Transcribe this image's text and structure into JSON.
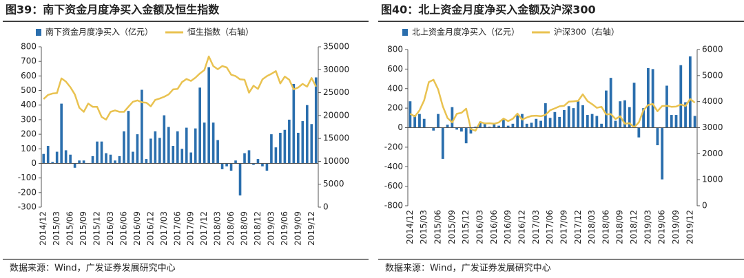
{
  "chart_data": [
    {
      "type": "bar",
      "title": "图39：南下资金月度净买入金额及恒生指数",
      "source": "数据来源：Wind，广发证券发展研究中心",
      "categories": [
        "2014/12",
        null,
        null,
        "2015/03",
        null,
        null,
        "2015/06",
        null,
        null,
        "2015/09",
        null,
        null,
        "2015/12",
        null,
        null,
        "2016/03",
        null,
        null,
        "2016/06",
        null,
        null,
        "2016/09",
        null,
        null,
        "2016/12",
        null,
        null,
        "2017/03",
        null,
        null,
        "2017/06",
        null,
        null,
        "2017/09",
        null,
        null,
        "2017/12",
        null,
        null,
        "2018/03",
        null,
        null,
        "2018/06",
        null,
        null,
        "2018/09",
        null,
        null,
        "2018/12",
        null,
        null,
        "2019/03",
        null,
        null,
        "2019/06",
        null,
        null,
        "2019/09",
        null,
        null,
        "2019/12",
        null
      ],
      "series": [
        {
          "name": "南下资金月度净买入（亿元）",
          "type": "bar",
          "color": "#2a6ead",
          "values": [
            65,
            120,
            10,
            80,
            410,
            90,
            60,
            -30,
            20,
            20,
            0,
            50,
            150,
            150,
            70,
            60,
            20,
            50,
            220,
            360,
            80,
            200,
            505,
            30,
            170,
            220,
            175,
            330,
            250,
            120,
            220,
            100,
            245,
            75,
            240,
            520,
            280,
            660,
            280,
            160,
            -40,
            -20,
            -50,
            20,
            -220,
            70,
            90,
            -10,
            30,
            -20,
            -50,
            200,
            110,
            210,
            230,
            300,
            545,
            210,
            290,
            400,
            270,
            590
          ]
        },
        {
          "name": "恒生指数（右轴）",
          "type": "line",
          "axis": "y2",
          "color": "#e9c250",
          "values": [
            23600,
            24500,
            24800,
            24900,
            28100,
            27400,
            26200,
            24600,
            21700,
            20800,
            22600,
            21900,
            21900,
            19700,
            19100,
            20800,
            21100,
            20800,
            20800,
            21900,
            23000,
            23300,
            22900,
            22800,
            22000,
            23400,
            23700,
            24100,
            24600,
            25700,
            25800,
            27300,
            27970,
            27550,
            28250,
            29180,
            29920,
            32900,
            30800,
            30100,
            30800,
            30500,
            28900,
            28600,
            27900,
            27800,
            24980,
            26500,
            25800,
            27900,
            28600,
            29100,
            29700,
            27000,
            28500,
            27800,
            25700,
            26100,
            26900,
            26300,
            28200,
            26300
          ]
        }
      ],
      "ylim": [
        -300,
        800
      ],
      "yticks": [
        -300,
        -200,
        -100,
        0,
        100,
        200,
        300,
        400,
        500,
        600,
        700,
        800
      ],
      "y2lim": [
        0,
        35000
      ],
      "y2ticks": [
        0,
        5000,
        10000,
        15000,
        20000,
        25000,
        30000,
        35000
      ]
    },
    {
      "type": "bar",
      "title": "图40：北上资金月度净买入金额及沪深300",
      "source": "数据来源：Wind，广发证券发展研究中心",
      "categories": [
        "2014/12",
        null,
        null,
        "2015/03",
        null,
        null,
        "2015/06",
        null,
        null,
        "2015/09",
        null,
        null,
        "2015/12",
        null,
        null,
        "2016/03",
        null,
        null,
        "2016/06",
        null,
        null,
        "2016/09",
        null,
        null,
        "2016/12",
        null,
        null,
        "2017/03",
        null,
        null,
        "2017/06",
        null,
        null,
        "2017/09",
        null,
        null,
        "2017/12",
        null,
        null,
        "2018/03",
        null,
        null,
        "2018/06",
        null,
        null,
        "2018/09",
        null,
        null,
        "2018/12",
        null,
        null,
        "2019/03",
        null,
        null,
        "2019/06",
        null,
        null,
        "2019/09",
        null,
        null,
        "2019/12",
        null
      ],
      "series": [
        {
          "name": "北上资金月度净买入（亿元）",
          "type": "bar",
          "color": "#2a6ead",
          "values": [
            270,
            130,
            140,
            90,
            0,
            -30,
            140,
            -320,
            30,
            210,
            -20,
            -40,
            -160,
            -60,
            10,
            60,
            40,
            10,
            40,
            20,
            80,
            20,
            40,
            130,
            140,
            40,
            50,
            90,
            70,
            250,
            100,
            160,
            110,
            180,
            220,
            200,
            270,
            230,
            130,
            140,
            120,
            40,
            380,
            510,
            70,
            270,
            280,
            210,
            460,
            -100,
            200,
            610,
            600,
            -180,
            -530,
            430,
            130,
            130,
            640,
            260,
            730,
            120
          ]
        },
        {
          "name": "沪深300（右轴）",
          "type": "line",
          "axis": "y2",
          "color": "#e9c250",
          "values": [
            3530,
            3430,
            3660,
            4050,
            4750,
            4840,
            4470,
            3820,
            3370,
            3200,
            3530,
            3570,
            3730,
            2950,
            2880,
            3220,
            3160,
            3170,
            3150,
            3200,
            3350,
            3250,
            3340,
            3540,
            3310,
            3390,
            3450,
            3460,
            3440,
            3490,
            3670,
            3740,
            3820,
            3840,
            4000,
            4010,
            4030,
            4280,
            4020,
            3900,
            3760,
            3800,
            3510,
            3520,
            3330,
            3440,
            3150,
            3170,
            3010,
            3200,
            3670,
            3870,
            3910,
            3630,
            3830,
            3840,
            3800,
            3810,
            3890,
            3830,
            4100,
            3960
          ]
        }
      ],
      "ylim": [
        -800,
        800
      ],
      "yticks": [
        -800,
        -600,
        -400,
        -200,
        0,
        200,
        400,
        600,
        800
      ],
      "y2lim": [
        0,
        6000
      ],
      "y2ticks": [
        0,
        1000,
        2000,
        3000,
        4000,
        5000,
        6000
      ]
    }
  ]
}
